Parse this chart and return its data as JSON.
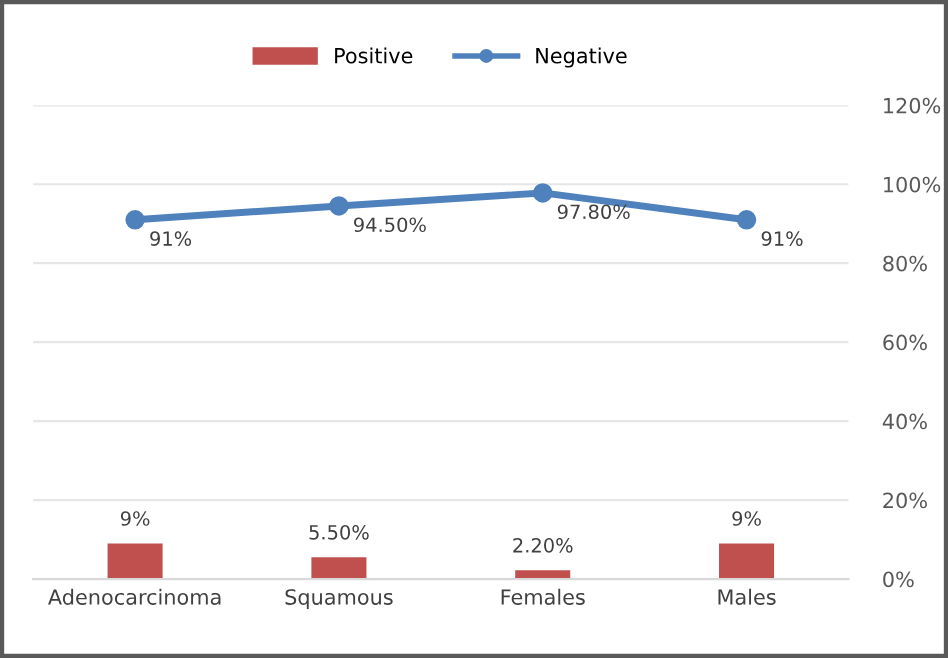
{
  "chart_data": {
    "type": "bar",
    "categories": [
      "Adenocarcinoma",
      "Squamous",
      "Females",
      "Males"
    ],
    "series": [
      {
        "name": "Positive",
        "color": "#c0504d",
        "values": [
          9,
          5.5,
          2.2,
          9
        ],
        "value_labels": [
          "9%",
          "5.50%",
          "2.20%",
          "9%"
        ]
      },
      {
        "name": "Negative",
        "type": "line",
        "color": "#4f81bd",
        "values": [
          91,
          94.5,
          97.8,
          91
        ],
        "value_labels": [
          "91%",
          "94.50%",
          "97.80%",
          "91%"
        ],
        "marker": "circle"
      }
    ],
    "ylim": [
      0,
      120
    ],
    "yticks": [
      {
        "value": 0,
        "label": "0%"
      },
      {
        "value": 20,
        "label": "20%"
      },
      {
        "value": 40,
        "label": "40%"
      },
      {
        "value": 60,
        "label": "60%"
      },
      {
        "value": 80,
        "label": "80%"
      },
      {
        "value": 100,
        "label": "100%"
      },
      {
        "value": 120,
        "label": "120%"
      }
    ],
    "grid": "y",
    "legend": "top"
  }
}
